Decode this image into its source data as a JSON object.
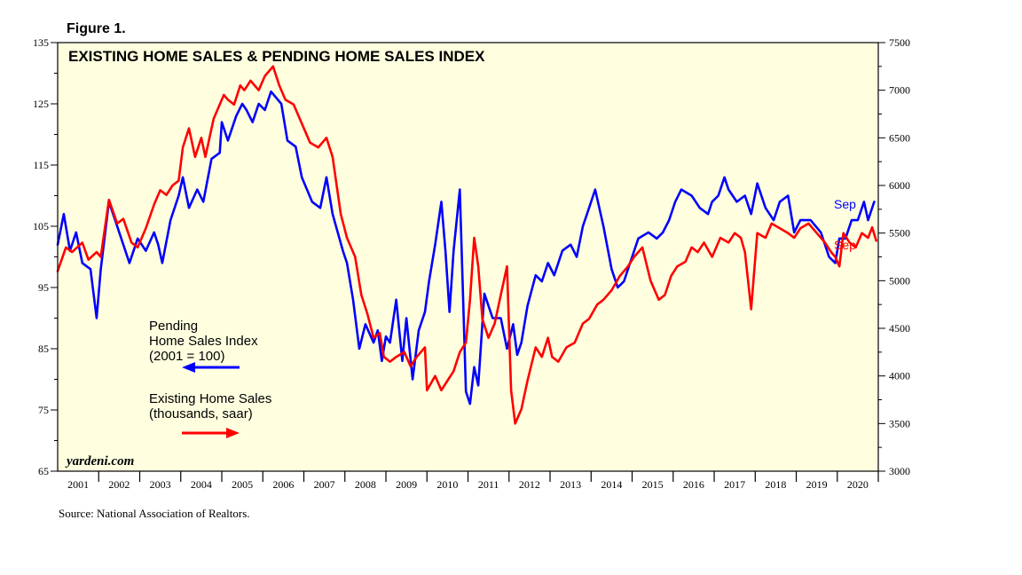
{
  "figure_label": "Figure 1.",
  "source": "Source: National Association of Realtors.",
  "watermark": "yardeni.com",
  "colors": {
    "plot_bg": "#ffffe0",
    "pending": "#0000ff",
    "existing": "#ff0000",
    "axis": "#000000"
  },
  "legend": {
    "pending_lines": [
      "Pending",
      "Home Sales Index",
      "(2001 = 100)"
    ],
    "existing_lines": [
      "Existing Home Sales",
      "(thousands, saar)"
    ]
  },
  "chart_data": {
    "type": "line",
    "title": "EXISTING HOME SALES & PENDING HOME SALES INDEX",
    "x_axis": {
      "range": [
        2001,
        2020.999
      ],
      "tick_labels": [
        "2001",
        "2002",
        "2003",
        "2004",
        "2005",
        "2006",
        "2007",
        "2008",
        "2009",
        "2010",
        "2011",
        "2012",
        "2013",
        "2014",
        "2015",
        "2016",
        "2017",
        "2018",
        "2019",
        "2020"
      ]
    },
    "y_left": {
      "range": [
        65,
        135
      ],
      "tick_labels": [
        "65",
        "75",
        "85",
        "95",
        "105",
        "115",
        "125",
        "135"
      ]
    },
    "y_right": {
      "range": [
        3000,
        7500
      ],
      "tick_labels": [
        "3000",
        "3500",
        "4000",
        "4500",
        "5000",
        "5500",
        "6000",
        "6500",
        "7000",
        "7500"
      ]
    },
    "series": [
      {
        "name": "Pending Home Sales Index (2001 = 100)",
        "axis": "left",
        "end_label": "Sep",
        "points": [
          [
            2001.0,
            102
          ],
          [
            2001.15,
            107
          ],
          [
            2001.3,
            101
          ],
          [
            2001.45,
            104
          ],
          [
            2001.6,
            99
          ],
          [
            2001.8,
            98
          ],
          [
            2001.95,
            90
          ],
          [
            2002.05,
            98
          ],
          [
            2002.25,
            109
          ],
          [
            2002.4,
            106
          ],
          [
            2002.55,
            103
          ],
          [
            2002.75,
            99
          ],
          [
            2002.95,
            103
          ],
          [
            2003.15,
            101
          ],
          [
            2003.35,
            104
          ],
          [
            2003.45,
            102
          ],
          [
            2003.55,
            99
          ],
          [
            2003.75,
            106
          ],
          [
            2003.95,
            110
          ],
          [
            2004.05,
            113
          ],
          [
            2004.2,
            108
          ],
          [
            2004.4,
            111
          ],
          [
            2004.55,
            109
          ],
          [
            2004.75,
            116
          ],
          [
            2004.95,
            117
          ],
          [
            2005.0,
            122
          ],
          [
            2005.15,
            119
          ],
          [
            2005.35,
            123
          ],
          [
            2005.5,
            125
          ],
          [
            2005.6,
            124
          ],
          [
            2005.75,
            122
          ],
          [
            2005.9,
            125
          ],
          [
            2006.05,
            124
          ],
          [
            2006.2,
            127
          ],
          [
            2006.45,
            125
          ],
          [
            2006.6,
            119
          ],
          [
            2006.8,
            118
          ],
          [
            2006.95,
            113
          ],
          [
            2007.2,
            109
          ],
          [
            2007.4,
            108
          ],
          [
            2007.55,
            113
          ],
          [
            2007.7,
            107
          ],
          [
            2007.95,
            101
          ],
          [
            2008.05,
            99
          ],
          [
            2008.2,
            93
          ],
          [
            2008.35,
            85
          ],
          [
            2008.5,
            89
          ],
          [
            2008.7,
            86
          ],
          [
            2008.8,
            88
          ],
          [
            2008.9,
            83
          ],
          [
            2009.0,
            87
          ],
          [
            2009.1,
            86
          ],
          [
            2009.25,
            93
          ],
          [
            2009.4,
            83
          ],
          [
            2009.5,
            90
          ],
          [
            2009.65,
            80
          ],
          [
            2009.8,
            88
          ],
          [
            2009.95,
            91
          ],
          [
            2010.05,
            96
          ],
          [
            2010.2,
            102
          ],
          [
            2010.35,
            109
          ],
          [
            2010.45,
            101
          ],
          [
            2010.55,
            91
          ],
          [
            2010.65,
            101
          ],
          [
            2010.8,
            111
          ],
          [
            2010.95,
            78
          ],
          [
            2011.05,
            76
          ],
          [
            2011.15,
            82
          ],
          [
            2011.25,
            79
          ],
          [
            2011.4,
            94
          ],
          [
            2011.6,
            90
          ],
          [
            2011.8,
            90
          ],
          [
            2011.95,
            85
          ],
          [
            2012.1,
            89
          ],
          [
            2012.2,
            84
          ],
          [
            2012.3,
            86
          ],
          [
            2012.45,
            92
          ],
          [
            2012.65,
            97
          ],
          [
            2012.8,
            96
          ],
          [
            2012.95,
            99
          ],
          [
            2013.1,
            97
          ],
          [
            2013.3,
            101
          ],
          [
            2013.5,
            102
          ],
          [
            2013.65,
            100
          ],
          [
            2013.8,
            105
          ],
          [
            2013.95,
            108
          ],
          [
            2014.1,
            111
          ],
          [
            2014.3,
            105
          ],
          [
            2014.5,
            98
          ],
          [
            2014.65,
            95
          ],
          [
            2014.8,
            96
          ],
          [
            2014.95,
            99
          ],
          [
            2015.15,
            103
          ],
          [
            2015.4,
            104
          ],
          [
            2015.6,
            103
          ],
          [
            2015.75,
            104
          ],
          [
            2015.9,
            106
          ],
          [
            2016.05,
            109
          ],
          [
            2016.2,
            111
          ],
          [
            2016.45,
            110
          ],
          [
            2016.65,
            108
          ],
          [
            2016.85,
            107
          ],
          [
            2016.95,
            109
          ],
          [
            2017.1,
            110
          ],
          [
            2017.25,
            113
          ],
          [
            2017.35,
            111
          ],
          [
            2017.55,
            109
          ],
          [
            2017.75,
            110
          ],
          [
            2017.9,
            107
          ],
          [
            2018.05,
            112
          ],
          [
            2018.25,
            108
          ],
          [
            2018.45,
            106
          ],
          [
            2018.6,
            109
          ],
          [
            2018.8,
            110
          ],
          [
            2018.95,
            104
          ],
          [
            2019.1,
            106
          ],
          [
            2019.35,
            106
          ],
          [
            2019.6,
            104
          ],
          [
            2019.8,
            100
          ],
          [
            2019.95,
            99
          ],
          [
            2020.05,
            103
          ],
          [
            2020.2,
            103
          ],
          [
            2020.35,
            106
          ],
          [
            2020.5,
            106
          ],
          [
            2020.65,
            109
          ],
          [
            2020.75,
            106
          ],
          [
            2020.9,
            109
          ]
        ]
      },
      {
        "name": "Existing Home Sales (thousands, saar)",
        "axis": "right",
        "end_label": "Sep",
        "points": [
          [
            2001.0,
            5100
          ],
          [
            2001.2,
            5350
          ],
          [
            2001.35,
            5300
          ],
          [
            2001.6,
            5400
          ],
          [
            2001.75,
            5220
          ],
          [
            2001.95,
            5300
          ],
          [
            2002.05,
            5250
          ],
          [
            2002.25,
            5850
          ],
          [
            2002.45,
            5600
          ],
          [
            2002.6,
            5650
          ],
          [
            2002.8,
            5400
          ],
          [
            2002.95,
            5350
          ],
          [
            2003.15,
            5550
          ],
          [
            2003.35,
            5800
          ],
          [
            2003.5,
            5950
          ],
          [
            2003.65,
            5900
          ],
          [
            2003.8,
            6000
          ],
          [
            2003.95,
            6050
          ],
          [
            2004.05,
            6400
          ],
          [
            2004.2,
            6600
          ],
          [
            2004.35,
            6300
          ],
          [
            2004.5,
            6500
          ],
          [
            2004.6,
            6300
          ],
          [
            2004.8,
            6700
          ],
          [
            2004.95,
            6850
          ],
          [
            2005.05,
            6950
          ],
          [
            2005.15,
            6900
          ],
          [
            2005.3,
            6850
          ],
          [
            2005.45,
            7050
          ],
          [
            2005.55,
            7000
          ],
          [
            2005.7,
            7100
          ],
          [
            2005.9,
            7000
          ],
          [
            2006.05,
            7150
          ],
          [
            2006.25,
            7250
          ],
          [
            2006.4,
            7050
          ],
          [
            2006.55,
            6900
          ],
          [
            2006.75,
            6850
          ],
          [
            2006.95,
            6650
          ],
          [
            2007.15,
            6450
          ],
          [
            2007.35,
            6400
          ],
          [
            2007.55,
            6500
          ],
          [
            2007.7,
            6300
          ],
          [
            2007.9,
            5700
          ],
          [
            2008.05,
            5450
          ],
          [
            2008.25,
            5250
          ],
          [
            2008.4,
            4850
          ],
          [
            2008.55,
            4650
          ],
          [
            2008.7,
            4400
          ],
          [
            2008.85,
            4450
          ],
          [
            2008.95,
            4200
          ],
          [
            2009.1,
            4150
          ],
          [
            2009.25,
            4200
          ],
          [
            2009.45,
            4250
          ],
          [
            2009.6,
            4100
          ],
          [
            2009.75,
            4200
          ],
          [
            2009.95,
            4300
          ],
          [
            2010.0,
            3850
          ],
          [
            2010.2,
            4000
          ],
          [
            2010.35,
            3850
          ],
          [
            2010.5,
            3950
          ],
          [
            2010.65,
            4050
          ],
          [
            2010.8,
            4250
          ],
          [
            2010.95,
            4350
          ],
          [
            2011.05,
            4800
          ],
          [
            2011.15,
            5450
          ],
          [
            2011.25,
            5150
          ],
          [
            2011.35,
            4600
          ],
          [
            2011.5,
            4400
          ],
          [
            2011.65,
            4550
          ],
          [
            2011.8,
            4850
          ],
          [
            2011.95,
            5150
          ],
          [
            2012.05,
            3850
          ],
          [
            2012.15,
            3500
          ],
          [
            2012.3,
            3650
          ],
          [
            2012.45,
            3950
          ],
          [
            2012.65,
            4300
          ],
          [
            2012.8,
            4200
          ],
          [
            2012.95,
            4400
          ],
          [
            2013.05,
            4200
          ],
          [
            2013.2,
            4150
          ],
          [
            2013.4,
            4300
          ],
          [
            2013.6,
            4350
          ],
          [
            2013.8,
            4550
          ],
          [
            2013.95,
            4600
          ],
          [
            2014.15,
            4750
          ],
          [
            2014.3,
            4800
          ],
          [
            2014.5,
            4900
          ],
          [
            2014.7,
            5050
          ],
          [
            2014.9,
            5150
          ],
          [
            2015.05,
            5250
          ],
          [
            2015.25,
            5350
          ],
          [
            2015.45,
            5000
          ],
          [
            2015.65,
            4800
          ],
          [
            2015.8,
            4850
          ],
          [
            2015.95,
            5050
          ],
          [
            2016.1,
            5150
          ],
          [
            2016.3,
            5200
          ],
          [
            2016.45,
            5350
          ],
          [
            2016.6,
            5300
          ],
          [
            2016.75,
            5400
          ],
          [
            2016.95,
            5250
          ],
          [
            2017.15,
            5450
          ],
          [
            2017.35,
            5400
          ],
          [
            2017.5,
            5500
          ],
          [
            2017.65,
            5450
          ],
          [
            2017.75,
            5300
          ],
          [
            2017.9,
            4700
          ],
          [
            2018.05,
            5500
          ],
          [
            2018.25,
            5450
          ],
          [
            2018.4,
            5600
          ],
          [
            2018.6,
            5550
          ],
          [
            2018.8,
            5500
          ],
          [
            2018.95,
            5450
          ],
          [
            2019.1,
            5550
          ],
          [
            2019.3,
            5600
          ],
          [
            2019.5,
            5500
          ],
          [
            2019.7,
            5400
          ],
          [
            2019.85,
            5300
          ],
          [
            2019.95,
            5250
          ],
          [
            2020.05,
            5150
          ],
          [
            2020.15,
            5500
          ],
          [
            2020.3,
            5400
          ],
          [
            2020.45,
            5350
          ],
          [
            2020.6,
            5500
          ],
          [
            2020.75,
            5450
          ],
          [
            2020.85,
            5560
          ],
          [
            2020.95,
            5420
          ]
        ]
      }
    ]
  }
}
